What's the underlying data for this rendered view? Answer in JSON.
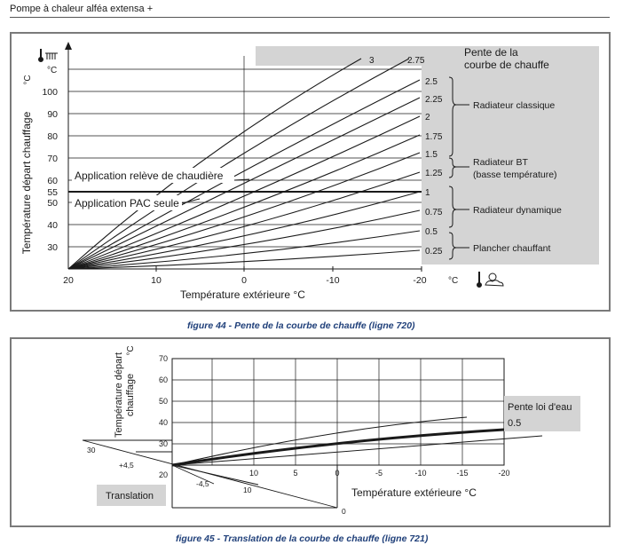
{
  "header": {
    "title": "Pompe à chaleur alféa extensa +"
  },
  "figure44": {
    "caption": "figure 44 - Pente de la courbe de chauffe (ligne 720)",
    "ylabel": "Température départ chauffage",
    "yunit_top": "°C",
    "yunit_left": "°C",
    "xlabel": "Température extérieure   °C",
    "xunit": "°C",
    "y_ticks": [
      "30",
      "40",
      "50",
      "55",
      "60",
      "70",
      "80",
      "90",
      "100"
    ],
    "x_ticks": [
      "20",
      "10",
      "0",
      "-10",
      "-20"
    ],
    "slope_header": "Pente de la courbe de chauffe",
    "slope_header_line1": "Pente de la",
    "slope_header_line2": "courbe de chauffe",
    "slope_labels": [
      "3",
      "2.75",
      "2.5",
      "2.25",
      "2",
      "1.75",
      "1.5",
      "1.25",
      "1",
      "0.75",
      "0.5",
      "0.25"
    ],
    "groups": {
      "radiateur_classique": "Radiateur classique",
      "radiateur_bt_1": "Radiateur BT",
      "radiateur_bt_2": "(basse température)",
      "radiateur_dynamique": "Radiateur dynamique",
      "plancher_chauffant": "Plancher chauffant"
    },
    "annotation_releve": "Application relève de chaudière",
    "annotation_pac": "Application PAC seule"
  },
  "figure45": {
    "caption": "figure 45 - Translation de la courbe de chauffe (ligne 721)",
    "ylabel_1": "Température départ",
    "ylabel_2": "chauffage",
    "yunit": "°C",
    "y_ticks": [
      "20",
      "30",
      "40",
      "50",
      "60",
      "70"
    ],
    "x_ticks": [
      "10",
      "5",
      "0",
      "-5",
      "-10",
      "-15",
      "-20"
    ],
    "xlabel": "Température extérieure   °C",
    "pente_label": "Pente loi d'eau",
    "pente_value": "0.5",
    "translation_label": "Translation",
    "diag_left_30": "30",
    "diag_left_plus": "+4,5",
    "diag_bottom_minus": "-4,5",
    "diag_bottom_10": "10",
    "diag_bottom_0": "0"
  },
  "colors": {
    "panel_gray": "#d4d4d4",
    "caption_blue": "#20407a",
    "frame_gray": "#7a7a7a",
    "line": "#1a1a1a"
  }
}
